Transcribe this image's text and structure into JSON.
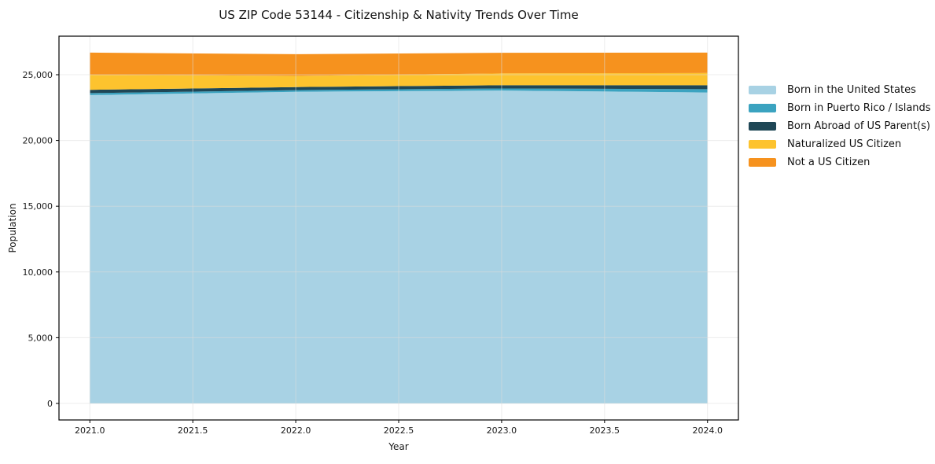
{
  "chart_data": {
    "type": "area",
    "stacked": true,
    "title": "US ZIP Code 53144 - Citizenship & Nativity Trends Over Time",
    "xlabel": "Year",
    "ylabel": "Population",
    "x": [
      2021,
      2022,
      2023,
      2024
    ],
    "series": [
      {
        "name": "Born in the United States",
        "color": "#A8D2E4",
        "values": [
          23450,
          23700,
          23800,
          23650
        ]
      },
      {
        "name": "Born in Puerto Rico / Islands",
        "color": "#3BA3C0",
        "values": [
          150,
          130,
          150,
          250
        ]
      },
      {
        "name": "Born Abroad of US Parent(s)",
        "color": "#1F4756",
        "values": [
          250,
          230,
          250,
          300
        ]
      },
      {
        "name": "Naturalized US Citizen",
        "color": "#FDC32E",
        "values": [
          1150,
          850,
          900,
          930
        ]
      },
      {
        "name": "Not a US Citizen",
        "color": "#F6921E",
        "values": [
          1680,
          1650,
          1570,
          1550
        ]
      }
    ],
    "totals": [
      26680,
      26560,
      26670,
      26680
    ],
    "xlim": [
      2020.85,
      2024.15
    ],
    "ylim": [
      -1256,
      27930
    ],
    "grid": true,
    "legend_position": "outside right"
  },
  "axes": {
    "xtick_values": [
      2021.0,
      2021.5,
      2022.0,
      2022.5,
      2023.0,
      2023.5,
      2024.0
    ],
    "xtick_labels": [
      "2021.0",
      "2021.5",
      "2022.0",
      "2022.5",
      "2023.0",
      "2023.5",
      "2024.0"
    ],
    "ytick_values": [
      0,
      5000,
      10000,
      15000,
      20000,
      25000
    ],
    "ytick_labels": [
      "0",
      "5,000",
      "10,000",
      "15,000",
      "20,000",
      "25,000"
    ]
  },
  "style": {
    "grid_color": "#dcdcdc",
    "spine_color": "#000000",
    "tick_text_color": "#191919"
  }
}
